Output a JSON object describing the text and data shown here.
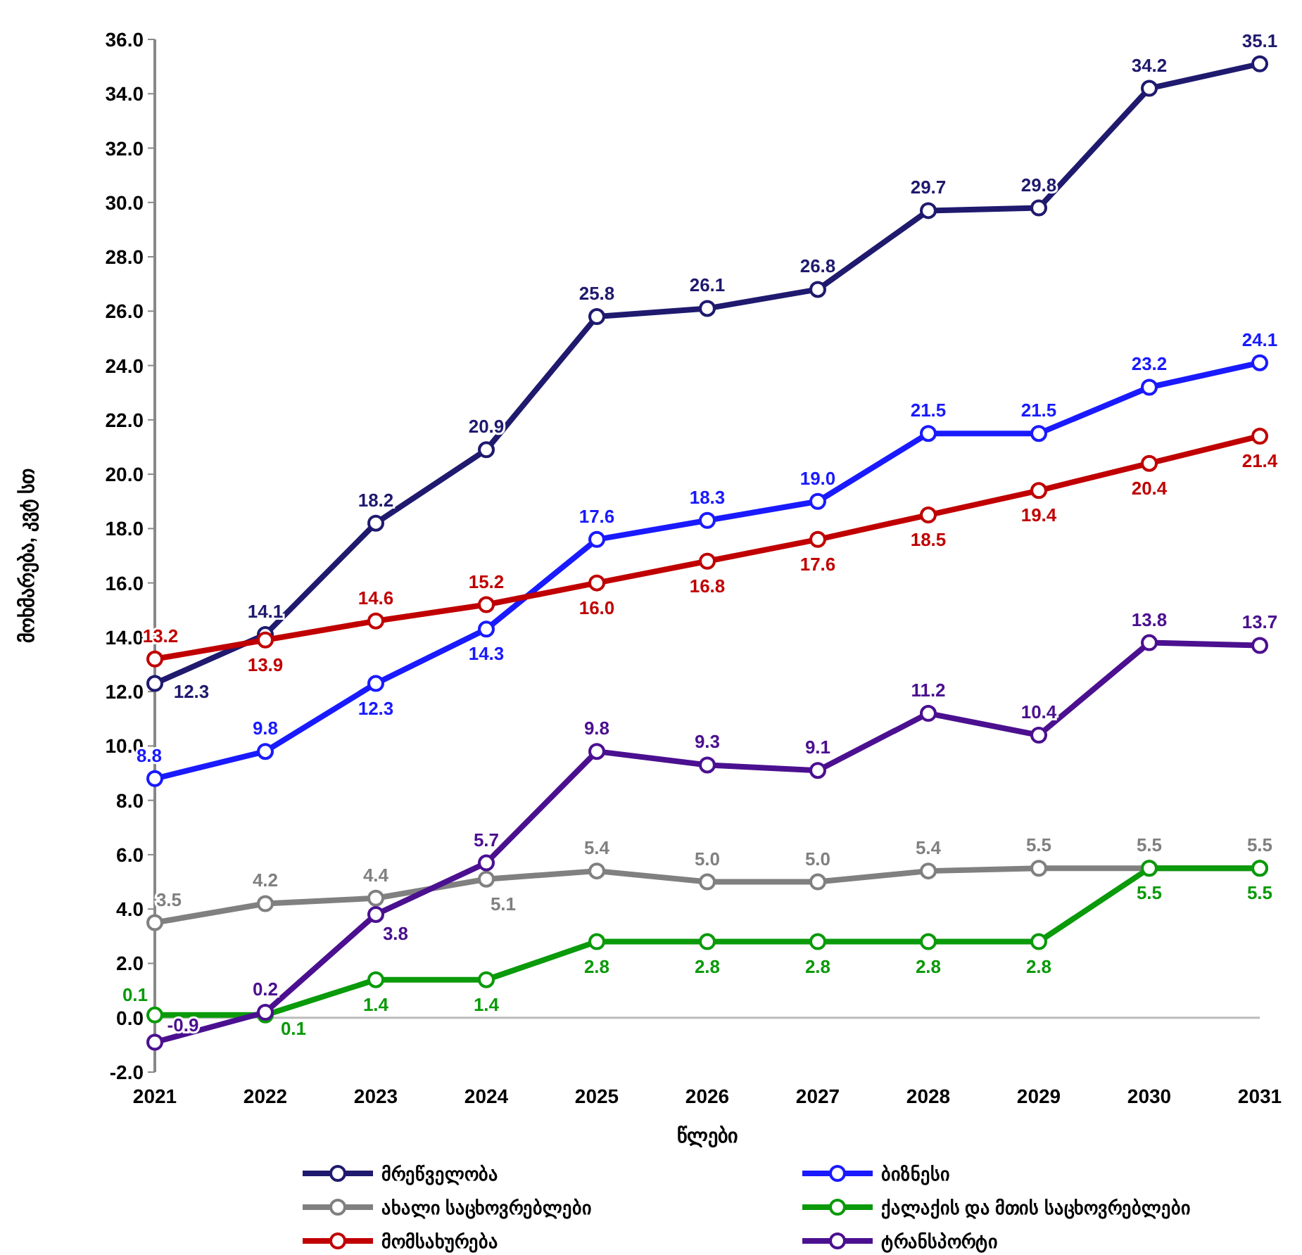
{
  "chart_data": {
    "type": "line",
    "xlabel": "წლები",
    "ylabel": "მოხმარება, კვტ სთ",
    "categories": [
      "2021",
      "2022",
      "2023",
      "2024",
      "2025",
      "2026",
      "2027",
      "2028",
      "2029",
      "2030",
      "2031"
    ],
    "series": [
      {
        "name": "მრეწველობა",
        "color": "#1f1a6e",
        "values": [
          12.3,
          14.1,
          18.2,
          20.9,
          25.8,
          26.1,
          26.8,
          29.7,
          29.8,
          34.2,
          35.1
        ],
        "value_labels": [
          "12.3",
          "14.1",
          "18.2",
          "20.9",
          "25.8",
          "26.1",
          "26.8",
          "29.7",
          "29.8",
          "34.2",
          "35.1"
        ]
      },
      {
        "name": "ბიზნესი",
        "color": "#1a1aff",
        "values": [
          8.8,
          9.8,
          12.3,
          14.3,
          17.6,
          18.3,
          19.0,
          21.5,
          21.5,
          23.2,
          24.1
        ],
        "value_labels": [
          "8.8",
          "9.8",
          "12.3",
          "14.3",
          "17.6",
          "18.3",
          "19.0",
          "21.5",
          "21.5",
          "23.2",
          "24.1"
        ]
      },
      {
        "name": "ახალი საცხოვრებლები",
        "color": "#808080",
        "values": [
          3.5,
          4.2,
          4.4,
          5.1,
          5.4,
          5.0,
          5.0,
          5.4,
          5.5,
          5.5,
          5.5
        ],
        "value_labels": [
          "3.5",
          "4.2",
          "4.4",
          "5.1",
          "5.4",
          "5.0",
          "5.0",
          "5.4",
          "5.5",
          "5.5",
          "5.5"
        ]
      },
      {
        "name": "ქალაქის და მთის საცხოვრებლები",
        "color": "#0a9a0a",
        "values": [
          0.1,
          0.1,
          1.4,
          1.4,
          2.8,
          2.8,
          2.8,
          2.8,
          2.8,
          5.5,
          5.5
        ],
        "value_labels": [
          "0.1",
          "0.1",
          "1.4",
          "1.4",
          "2.8",
          "2.8",
          "2.8",
          "2.8",
          "2.8",
          "5.5",
          "5.5"
        ]
      },
      {
        "name": "მომსახურება",
        "color": "#c00000",
        "values": [
          13.2,
          13.9,
          14.6,
          15.2,
          16.0,
          16.8,
          17.6,
          18.5,
          19.4,
          20.4,
          21.4
        ],
        "value_labels": [
          "13.2",
          "13.9",
          "14.6",
          "15.2",
          "16.0",
          "16.8",
          "17.6",
          "18.5",
          "19.4",
          "20.4",
          "21.4"
        ]
      },
      {
        "name": "ტრანსპორტი",
        "color": "#4b1090",
        "values": [
          -0.9,
          0.2,
          3.8,
          5.7,
          9.8,
          9.3,
          9.1,
          11.2,
          10.4,
          13.8,
          13.7
        ],
        "value_labels": [
          "-0.9",
          "0.2",
          "3.8",
          "5.7",
          "9.8",
          "9.3",
          "9.1",
          "11.2",
          "10.4",
          "13.8",
          "13.7"
        ]
      }
    ],
    "ylim": [
      -2,
      36
    ],
    "yticks": [
      {
        "value": -2,
        "label": "-2.0"
      },
      {
        "value": 0,
        "label": "0.0"
      },
      {
        "value": 2,
        "label": "2.0"
      },
      {
        "value": 4,
        "label": "4.0"
      },
      {
        "value": 6,
        "label": "6.0"
      },
      {
        "value": 8,
        "label": "8.0"
      },
      {
        "value": 10,
        "label": "10.0"
      },
      {
        "value": 12,
        "label": "12.0"
      },
      {
        "value": 14,
        "label": "14.0"
      },
      {
        "value": 16,
        "label": "16.0"
      },
      {
        "value": 18,
        "label": "18.0"
      },
      {
        "value": 20,
        "label": "20.0"
      },
      {
        "value": 22,
        "label": "22.0"
      },
      {
        "value": 24,
        "label": "24.0"
      },
      {
        "value": 26,
        "label": "26.0"
      },
      {
        "value": 28,
        "label": "28.0"
      },
      {
        "value": 30,
        "label": "30.0"
      },
      {
        "value": 32,
        "label": "32.0"
      },
      {
        "value": 34,
        "label": "34.0"
      },
      {
        "value": 36,
        "label": "36.0"
      }
    ],
    "legend": "bottom",
    "marker": "circle",
    "line_style": "solid"
  }
}
